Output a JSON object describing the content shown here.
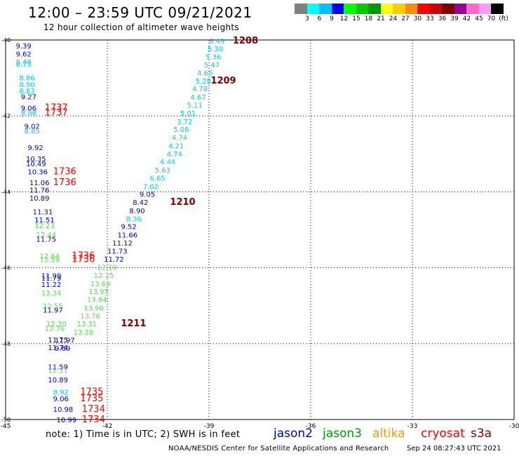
{
  "title": "12:00 – 23:59 UTC 09/21/2021",
  "subtitle": "12 hour collection of altimeter wave heights",
  "legend": {
    "colors": [
      "#808080",
      "#00ffff",
      "#00bfff",
      "#0000ff",
      "#00ff00",
      "#00cc00",
      "#009900",
      "#ffff00",
      "#ffcc00",
      "#ff8c00",
      "#ff0000",
      "#cc0000",
      "#800000",
      "#990099",
      "#ff66cc",
      "#ff99ff",
      "#000000"
    ],
    "labels": [
      "3",
      "6",
      "9",
      "12",
      "15",
      "18",
      "21",
      "24",
      "27",
      "30",
      "33",
      "36",
      "39",
      "42",
      "45",
      "70",
      "(ft)"
    ]
  },
  "axes": {
    "x_ticks": [
      {
        "label": "-45",
        "value": -45
      },
      {
        "label": "-42",
        "value": -42
      },
      {
        "label": "-39",
        "value": -39
      },
      {
        "label": "-36",
        "value": -36
      },
      {
        "label": "-33",
        "value": -33
      },
      {
        "label": "-30",
        "value": -30
      }
    ],
    "y_ticks": [
      {
        "label": "-40",
        "value": -40
      },
      {
        "label": "-42",
        "value": -42
      },
      {
        "label": "-44",
        "value": -44
      },
      {
        "label": "-46",
        "value": -46
      },
      {
        "label": "-48",
        "value": -48
      },
      {
        "label": "-50",
        "value": -50
      }
    ]
  },
  "series_colors": {
    "cyan": "#00ccee",
    "blue": "#0000cc",
    "green": "#55dd55",
    "red": "#ff0000",
    "maroon": "#800000"
  },
  "labels": [
    {
      "text": "6.49",
      "lon": -39.0,
      "lat": -40.02,
      "color": "cyan"
    },
    {
      "text": "1208",
      "lon": -38.3,
      "lat": -40.02,
      "color": "maroon",
      "bold": true,
      "big": true
    },
    {
      "text": "5.30",
      "lon": -39.05,
      "lat": -40.22,
      "color": "cyan"
    },
    {
      "text": "5.36",
      "lon": -39.1,
      "lat": -40.43,
      "color": "cyan"
    },
    {
      "text": "5.47",
      "lon": -39.15,
      "lat": -40.65,
      "color": "cyan"
    },
    {
      "text": "4.65",
      "lon": -39.35,
      "lat": -40.86,
      "color": "cyan"
    },
    {
      "text": "5.28",
      "lon": -39.4,
      "lat": -41.07,
      "color": "cyan"
    },
    {
      "text": "1209",
      "lon": -38.95,
      "lat": -41.07,
      "color": "maroon",
      "bold": true,
      "big": true
    },
    {
      "text": "4.78",
      "lon": -39.5,
      "lat": -41.28,
      "color": "cyan"
    },
    {
      "text": "4.67",
      "lon": -39.55,
      "lat": -41.5,
      "color": "cyan"
    },
    {
      "text": "5.11",
      "lon": -39.65,
      "lat": -41.71,
      "color": "cyan"
    },
    {
      "text": "5.01",
      "lon": -39.85,
      "lat": -41.92,
      "color": "cyan"
    },
    {
      "text": "3.72",
      "lon": -39.95,
      "lat": -42.14,
      "color": "cyan"
    },
    {
      "text": "5.08",
      "lon": -40.05,
      "lat": -42.35,
      "color": "cyan"
    },
    {
      "text": "4.74",
      "lon": -40.1,
      "lat": -42.56,
      "color": "cyan"
    },
    {
      "text": "4.21",
      "lon": -40.2,
      "lat": -42.78,
      "color": "cyan"
    },
    {
      "text": "4.74",
      "lon": -40.25,
      "lat": -42.99,
      "color": "cyan"
    },
    {
      "text": "4.44",
      "lon": -40.45,
      "lat": -43.2,
      "color": "cyan"
    },
    {
      "text": "5.63",
      "lon": -40.6,
      "lat": -43.42,
      "color": "cyan"
    },
    {
      "text": "6.65",
      "lon": -40.75,
      "lat": -43.63,
      "color": "cyan"
    },
    {
      "text": "7.02",
      "lon": -40.95,
      "lat": -43.85,
      "color": "cyan"
    },
    {
      "text": "9.05",
      "lon": -41.05,
      "lat": -44.06,
      "color": "blue"
    },
    {
      "text": "8.42",
      "lon": -41.25,
      "lat": -44.27,
      "color": "blue"
    },
    {
      "text": "1210",
      "lon": -40.15,
      "lat": -44.27,
      "color": "maroon",
      "bold": true,
      "big": true
    },
    {
      "text": "8.90",
      "lon": -41.35,
      "lat": -44.49,
      "color": "blue"
    },
    {
      "text": "8.36",
      "lon": -41.45,
      "lat": -44.7,
      "color": "cyan"
    },
    {
      "text": "9.52",
      "lon": -41.6,
      "lat": -44.91,
      "color": "blue"
    },
    {
      "text": "11.66",
      "lon": -41.7,
      "lat": -45.13,
      "color": "blue"
    },
    {
      "text": "11.12",
      "lon": -41.85,
      "lat": -45.34,
      "color": "blue"
    },
    {
      "text": "11.73",
      "lon": -42.0,
      "lat": -45.55,
      "color": "blue"
    },
    {
      "text": "11.72",
      "lon": -42.1,
      "lat": -45.77,
      "color": "blue"
    },
    {
      "text": "12.10",
      "lon": -42.3,
      "lat": -45.98,
      "color": "green"
    },
    {
      "text": "12.25",
      "lon": -42.4,
      "lat": -46.19,
      "color": "green"
    },
    {
      "text": "13.69",
      "lon": -42.5,
      "lat": -46.41,
      "color": "green"
    },
    {
      "text": "13.95",
      "lon": -42.55,
      "lat": -46.62,
      "color": "green"
    },
    {
      "text": "13.84",
      "lon": -42.6,
      "lat": -46.83,
      "color": "green"
    },
    {
      "text": "13.90",
      "lon": -42.7,
      "lat": -47.05,
      "color": "green"
    },
    {
      "text": "13.76",
      "lon": -42.8,
      "lat": -47.26,
      "color": "green"
    },
    {
      "text": "13.31",
      "lon": -42.9,
      "lat": -47.47,
      "color": "green"
    },
    {
      "text": "1211",
      "lon": -41.6,
      "lat": -47.47,
      "color": "maroon",
      "bold": true,
      "big": true
    },
    {
      "text": "13.28",
      "lon": -43.0,
      "lat": -47.69,
      "color": "green"
    },
    {
      "text": "11.97",
      "lon": -43.55,
      "lat": -47.9,
      "color": "blue"
    },
    {
      "text": "9.69",
      "lon": -43.55,
      "lat": -48.11,
      "color": "blue"
    },
    {
      "text": "9.39",
      "lon": -44.7,
      "lat": -40.15,
      "color": "blue"
    },
    {
      "text": "9.62",
      "lon": -44.7,
      "lat": -40.36,
      "color": "blue"
    },
    {
      "text": "8.48",
      "lon": -44.7,
      "lat": -40.57,
      "color": "cyan"
    },
    {
      "text": "8.73",
      "lon": -44.7,
      "lat": -40.63,
      "color": "cyan"
    },
    {
      "text": "8.86",
      "lon": -44.6,
      "lat": -40.99,
      "color": "cyan"
    },
    {
      "text": "8.90",
      "lon": -44.6,
      "lat": -41.16,
      "color": "cyan"
    },
    {
      "text": "8.83",
      "lon": -44.6,
      "lat": -41.33,
      "color": "cyan"
    },
    {
      "text": "9.27",
      "lon": -44.55,
      "lat": -41.49,
      "color": "blue"
    },
    {
      "text": "9.06",
      "lon": -44.55,
      "lat": -41.78,
      "color": "blue"
    },
    {
      "text": "1737",
      "lon": -43.85,
      "lat": -41.78,
      "color": "red",
      "big": true
    },
    {
      "text": "8.98",
      "lon": -44.55,
      "lat": -41.91,
      "color": "cyan"
    },
    {
      "text": "1737",
      "lon": -43.85,
      "lat": -41.91,
      "color": "red",
      "big": true
    },
    {
      "text": "9.02",
      "lon": -44.45,
      "lat": -42.26,
      "color": "blue"
    },
    {
      "text": "8.85",
      "lon": -44.45,
      "lat": -42.38,
      "color": "cyan"
    },
    {
      "text": "9.92",
      "lon": -44.35,
      "lat": -42.83,
      "color": "blue"
    },
    {
      "text": "10.35",
      "lon": -44.4,
      "lat": -43.12,
      "color": "blue"
    },
    {
      "text": "10.49",
      "lon": -44.4,
      "lat": -43.25,
      "color": "blue"
    },
    {
      "text": "10.36",
      "lon": -44.35,
      "lat": -43.47,
      "color": "blue"
    },
    {
      "text": "1736",
      "lon": -43.6,
      "lat": -43.47,
      "color": "red",
      "big": true
    },
    {
      "text": "11.06",
      "lon": -44.3,
      "lat": -43.75,
      "color": "blue"
    },
    {
      "text": "1736",
      "lon": -43.6,
      "lat": -43.75,
      "color": "red",
      "big": true
    },
    {
      "text": "11.76",
      "lon": -44.3,
      "lat": -43.95,
      "color": "blue"
    },
    {
      "text": "10.89",
      "lon": -44.3,
      "lat": -44.16,
      "color": "blue"
    },
    {
      "text": "11.31",
      "lon": -44.2,
      "lat": -44.52,
      "color": "blue"
    },
    {
      "text": "11.51",
      "lon": -44.15,
      "lat": -44.73,
      "color": "blue"
    },
    {
      "text": "12.23",
      "lon": -44.15,
      "lat": -44.88,
      "color": "green"
    },
    {
      "text": "12.44",
      "lon": -44.1,
      "lat": -45.12,
      "color": "green"
    },
    {
      "text": "11.75",
      "lon": -44.1,
      "lat": -45.24,
      "color": "blue"
    },
    {
      "text": "12.64",
      "lon": -44.0,
      "lat": -45.68,
      "color": "green"
    },
    {
      "text": "1736",
      "lon": -43.05,
      "lat": -45.68,
      "color": "red",
      "big": true
    },
    {
      "text": "12.59",
      "lon": -44.0,
      "lat": -45.78,
      "color": "green"
    },
    {
      "text": "1736",
      "lon": -43.05,
      "lat": -45.78,
      "color": "red",
      "big": true
    },
    {
      "text": "11.99",
      "lon": -43.95,
      "lat": -46.2,
      "color": "blue"
    },
    {
      "text": "11.79",
      "lon": -43.95,
      "lat": -46.27,
      "color": "blue"
    },
    {
      "text": "11.22",
      "lon": -43.95,
      "lat": -46.43,
      "color": "blue"
    },
    {
      "text": "13.34",
      "lon": -43.95,
      "lat": -46.65,
      "color": "green"
    },
    {
      "text": "12.55",
      "lon": -43.9,
      "lat": -47.0,
      "color": "green"
    },
    {
      "text": "11.97",
      "lon": -43.9,
      "lat": -47.11,
      "color": "blue"
    },
    {
      "text": "12.30",
      "lon": -43.8,
      "lat": -47.47,
      "color": "green"
    },
    {
      "text": "12.76",
      "lon": -43.85,
      "lat": -47.6,
      "color": "green"
    },
    {
      "text": "11.75",
      "lon": -43.75,
      "lat": -47.89,
      "color": "blue"
    },
    {
      "text": "11.74",
      "lon": -43.75,
      "lat": -48.1,
      "color": "blue"
    },
    {
      "text": "11.59",
      "lon": -43.75,
      "lat": -48.6,
      "color": "blue"
    },
    {
      "text": "12.11",
      "lon": -43.75,
      "lat": -48.7,
      "color": "green"
    },
    {
      "text": "10.89",
      "lon": -43.75,
      "lat": -48.95,
      "color": "blue"
    },
    {
      "text": "8.92",
      "lon": -43.6,
      "lat": -49.27,
      "color": "cyan"
    },
    {
      "text": "1735",
      "lon": -42.8,
      "lat": -49.27,
      "color": "red",
      "big": true
    },
    {
      "text": "9.06",
      "lon": -43.6,
      "lat": -49.45,
      "color": "blue"
    },
    {
      "text": "1735",
      "lon": -42.8,
      "lat": -49.45,
      "color": "red",
      "big": true
    },
    {
      "text": "10.98",
      "lon": -43.6,
      "lat": -49.72,
      "color": "blue"
    },
    {
      "text": "1734",
      "lon": -42.75,
      "lat": -49.72,
      "color": "red",
      "big": true
    },
    {
      "text": "10.99",
      "lon": -43.5,
      "lat": -50.0,
      "color": "blue"
    },
    {
      "text": "1734",
      "lon": -42.75,
      "lat": -50.0,
      "color": "red",
      "big": true
    }
  ],
  "footer": {
    "note": "note:  1) Time is in UTC;  2) SWH is in feet",
    "satellites": [
      {
        "name": "jason2",
        "color": "#0000cc"
      },
      {
        "name": "jason3",
        "color": "#009900"
      },
      {
        "name": "altika",
        "color": "#ff9900"
      },
      {
        "name": "cryosat",
        "color": "#ff0000"
      },
      {
        "name": "s3a",
        "color": "#800000"
      }
    ],
    "credit": "NOAA/NESDIS Center for Satellite Applications and Research",
    "timestamp": "Sep 24 08:27:43 UTC 2021"
  }
}
